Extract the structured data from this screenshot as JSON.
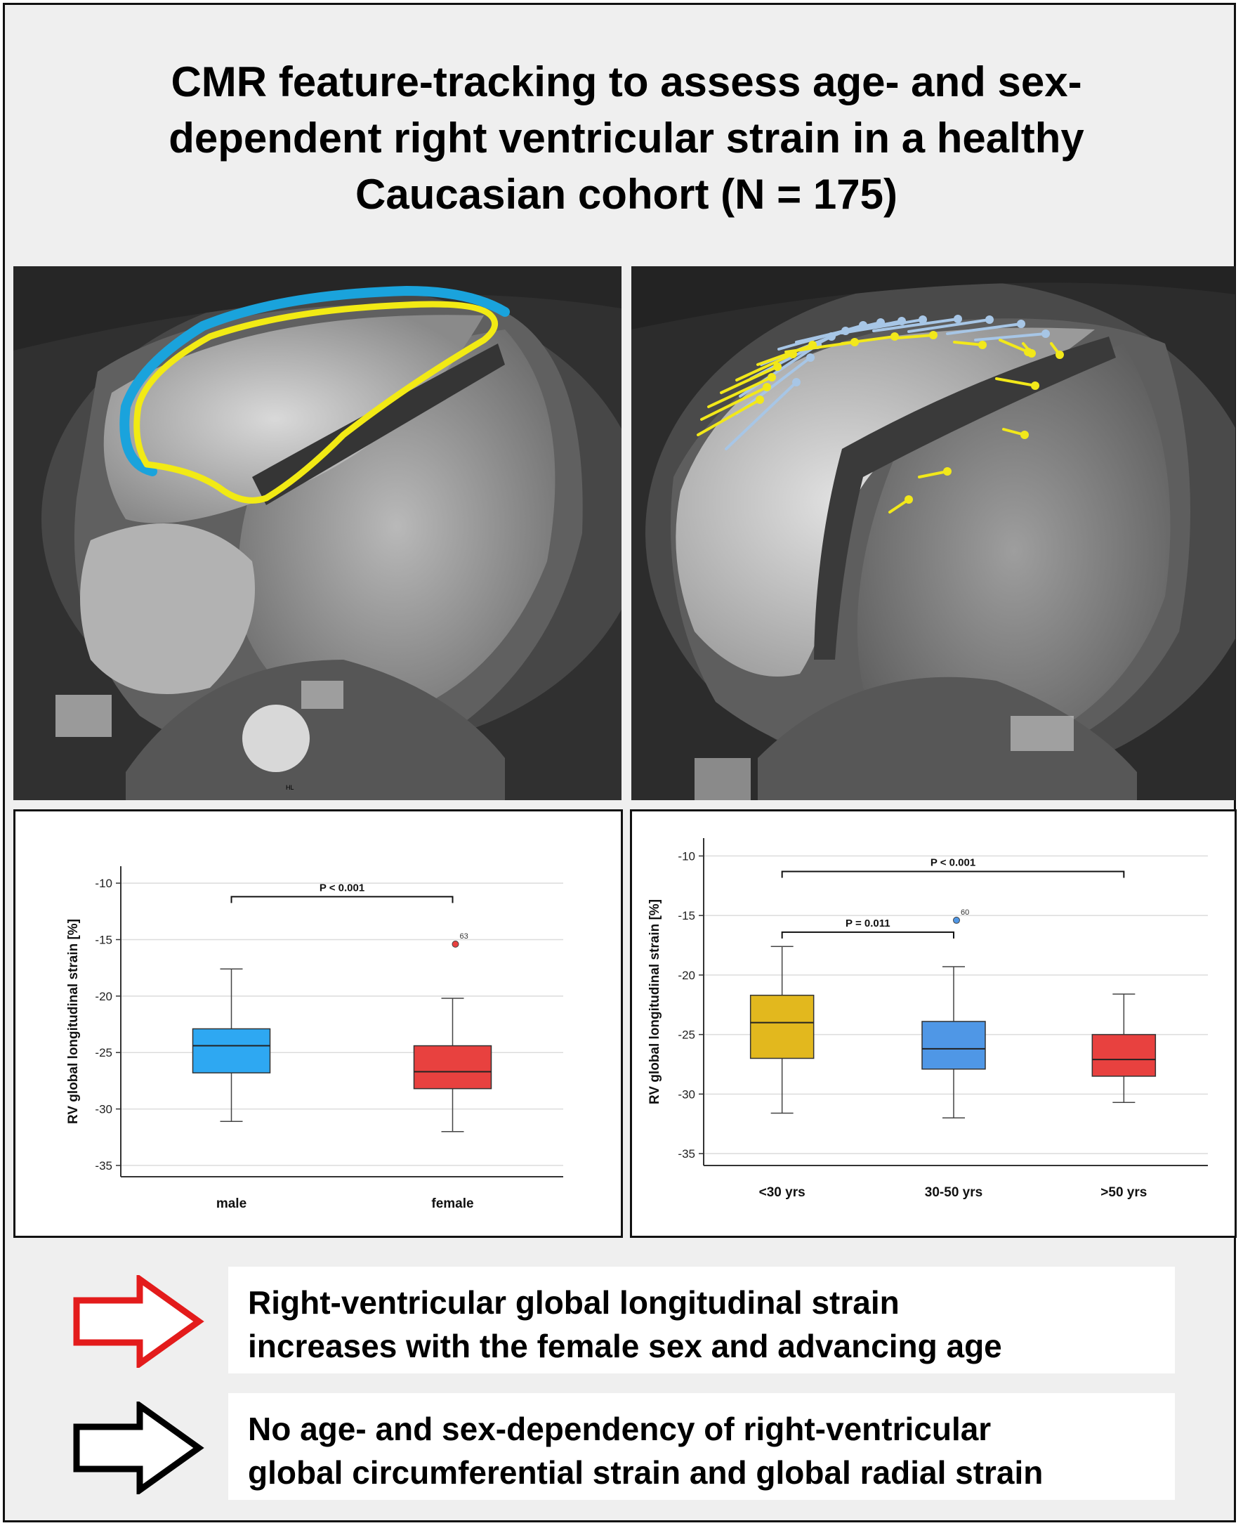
{
  "title_lines": [
    "CMR feature-tracking to assess age- and sex-",
    "dependent right ventricular strain in a healthy",
    "Caucasian cohort (N = 175)"
  ],
  "colors": {
    "contour_blue": "#1aa3dc",
    "contour_yellow": "#f2ea14",
    "tracking_light_blue": "#a7c6e6",
    "tracking_yellow": "#f2e81a",
    "box_male": "#2ea8f2",
    "box_female": "#e8413f",
    "box_under30": "#e2b81e",
    "box_30_50": "#4f97e6",
    "box_over50": "#e8413f",
    "arrow_red": "#e31b1b",
    "arrow_black": "#000000"
  },
  "mri_left": {
    "annotation": "HL"
  },
  "icons": [
    "red-arrow-icon",
    "black-arrow-icon"
  ],
  "chart_data": [
    {
      "type": "box",
      "ylabel": "RV global longitudinal strain [%]",
      "ylim": [
        -36,
        -8.5
      ],
      "yticks": [
        -10,
        -15,
        -20,
        -25,
        -30,
        -35
      ],
      "categories": [
        "male",
        "female"
      ],
      "boxes": [
        {
          "category": "male",
          "whisker_high": -17.6,
          "q3": -22.9,
          "median": -24.4,
          "q1": -26.8,
          "whisker_low": -31.1
        },
        {
          "category": "female",
          "whisker_high": -20.2,
          "q3": -24.4,
          "median": -26.7,
          "q1": -28.2,
          "whisker_low": -32.0,
          "outlier": {
            "value": -15.4,
            "label": "63"
          }
        }
      ],
      "annotations": [
        {
          "text": "P < 0.001",
          "from": "male",
          "to": "female",
          "level": -11.2
        }
      ],
      "grid": true
    },
    {
      "type": "box",
      "ylabel": "RV global longitudinal strain [%]",
      "ylim": [
        -36,
        -8.5
      ],
      "yticks": [
        -10,
        -15,
        -20,
        -25,
        -30,
        -35
      ],
      "categories": [
        "<30 yrs",
        "30-50 yrs",
        ">50 yrs"
      ],
      "boxes": [
        {
          "category": "<30 yrs",
          "whisker_high": -17.6,
          "q3": -21.7,
          "median": -24.0,
          "q1": -27.0,
          "whisker_low": -31.6
        },
        {
          "category": "30-50 yrs",
          "whisker_high": -19.3,
          "q3": -23.9,
          "median": -26.2,
          "q1": -27.9,
          "whisker_low": -32.0,
          "outlier": {
            "value": -15.4,
            "label": "60"
          }
        },
        {
          "category": ">50 yrs",
          "whisker_high": -21.6,
          "q3": -25.0,
          "median": -27.1,
          "q1": -28.5,
          "whisker_low": -30.7
        }
      ],
      "annotations": [
        {
          "text": "P < 0.001",
          "from": "<30 yrs",
          "to": ">50 yrs",
          "level": -11.3
        },
        {
          "text": "P = 0.011",
          "from": "<30 yrs",
          "to": "30-50 yrs",
          "level": -16.4
        }
      ],
      "grid": true
    }
  ],
  "messages": [
    {
      "lines": [
        "Right-ventricular global longitudinal strain",
        "increases with the female sex and advancing age"
      ]
    },
    {
      "lines": [
        "No age- and sex-dependency of right-ventricular",
        "global circumferential strain and global radial strain"
      ]
    }
  ]
}
